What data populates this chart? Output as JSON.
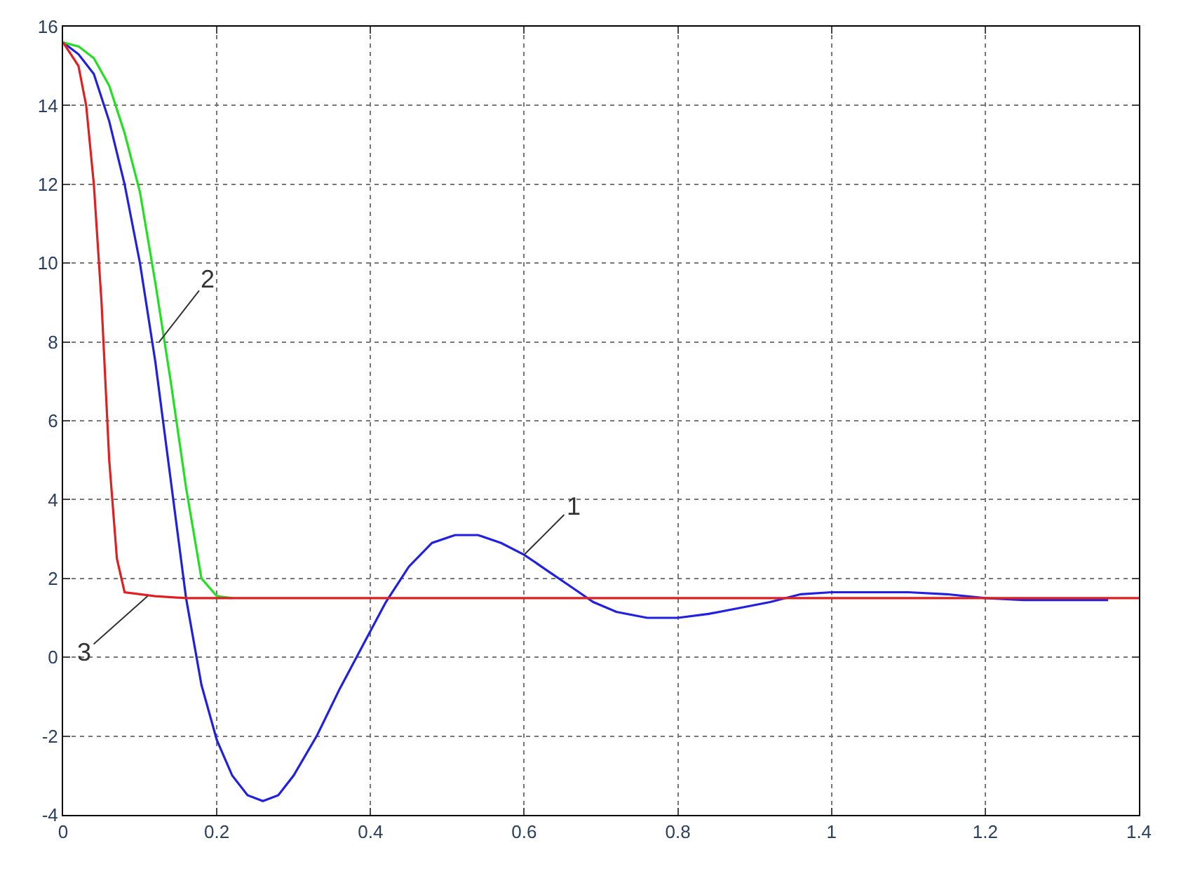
{
  "chart_data": {
    "type": "line",
    "xlim": [
      0,
      1.4
    ],
    "xticks": [
      0,
      0.2,
      0.4,
      0.6,
      0.8,
      1,
      1.2,
      1.4
    ],
    "ylim": [
      -4,
      16
    ],
    "yticks": [
      -4,
      -2,
      0,
      2,
      4,
      6,
      8,
      10,
      12,
      14,
      16
    ],
    "grid": true,
    "marker": "none",
    "line_style": "solid",
    "series": [
      {
        "color": "#2020e0",
        "x": [
          0,
          0.02,
          0.04,
          0.06,
          0.08,
          0.1,
          0.12,
          0.14,
          0.16,
          0.18,
          0.2,
          0.22,
          0.24,
          0.26,
          0.28,
          0.3,
          0.33,
          0.36,
          0.39,
          0.42,
          0.45,
          0.48,
          0.51,
          0.54,
          0.57,
          0.6,
          0.63,
          0.66,
          0.69,
          0.72,
          0.76,
          0.8,
          0.84,
          0.88,
          0.92,
          0.96,
          1.0,
          1.05,
          1.1,
          1.15,
          1.2,
          1.25,
          1.3,
          1.36
        ],
        "values": [
          15.6,
          15.3,
          14.8,
          13.6,
          12,
          10,
          7.5,
          4.5,
          1.5,
          -0.7,
          -2.1,
          -3,
          -3.5,
          -3.65,
          -3.5,
          -3,
          -2,
          -0.8,
          0.3,
          1.4,
          2.3,
          2.9,
          3.1,
          3.1,
          2.9,
          2.6,
          2.2,
          1.8,
          1.4,
          1.15,
          1.0,
          1.0,
          1.1,
          1.25,
          1.4,
          1.6,
          1.65,
          1.65,
          1.65,
          1.6,
          1.5,
          1.45,
          1.45,
          1.45
        ]
      },
      {
        "color": "#20e020",
        "x": [
          0,
          0.02,
          0.04,
          0.06,
          0.08,
          0.1,
          0.12,
          0.14,
          0.16,
          0.18,
          0.2,
          0.22
        ],
        "values": [
          15.6,
          15.5,
          15.2,
          14.5,
          13.3,
          11.8,
          9.5,
          7,
          4.3,
          2,
          1.55,
          1.5
        ]
      },
      {
        "color": "#e02020",
        "x": [
          0,
          0.02,
          0.03,
          0.04,
          0.05,
          0.06,
          0.07,
          0.08,
          0.12,
          0.16,
          1.4
        ],
        "values": [
          15.6,
          15,
          14,
          12,
          9,
          5,
          2.5,
          1.65,
          1.55,
          1.5,
          1.5
        ]
      }
    ],
    "annotations": [
      {
        "text": "1",
        "x": 0.6,
        "y": 2.6
      },
      {
        "text": "2",
        "x": 0.125,
        "y": 8
      },
      {
        "text": "3",
        "x": 0.11,
        "y": 1.55
      }
    ]
  }
}
